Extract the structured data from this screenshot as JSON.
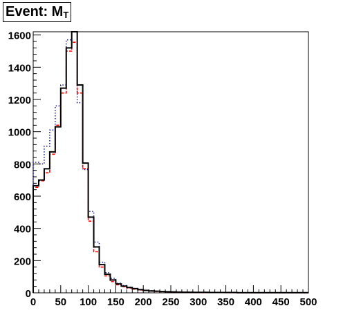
{
  "chart_data": {
    "type": "histogram",
    "title": {
      "main": "Event: M",
      "subscript": "T"
    },
    "xlim": [
      0,
      500
    ],
    "ylim": [
      0,
      1620
    ],
    "bin_width": 10,
    "x_ticks": [
      0,
      50,
      100,
      150,
      200,
      250,
      300,
      350,
      400,
      450,
      500
    ],
    "y_ticks": [
      0,
      200,
      400,
      600,
      800,
      1000,
      1200,
      1400,
      1600
    ],
    "grid": false,
    "series": [
      {
        "color": "#000000",
        "style": "solid",
        "values": [
          665,
          700,
          770,
          875,
          1030,
          1270,
          1520,
          1620,
          1290,
          805,
          470,
          285,
          175,
          115,
          80,
          55,
          42,
          33,
          26,
          20,
          15,
          12,
          10,
          8,
          7,
          6,
          5,
          4,
          4,
          3,
          3,
          3,
          2,
          2,
          2,
          2,
          2,
          1,
          1,
          1,
          1,
          1,
          1,
          1,
          1,
          1,
          1,
          1,
          1,
          1
        ]
      },
      {
        "color": "#1f1fa8",
        "style": "dotted",
        "values": [
          810,
          800,
          910,
          1010,
          1160,
          1290,
          1570,
          1620,
          1180,
          765,
          505,
          315,
          190,
          125,
          90,
          60,
          45,
          35,
          27,
          21,
          16,
          13,
          10,
          8,
          7,
          6,
          5,
          4,
          4,
          3,
          3,
          3,
          2,
          2,
          2,
          2,
          2,
          1,
          1,
          1,
          1,
          1,
          1,
          1,
          1,
          1,
          1,
          1,
          1,
          1
        ]
      },
      {
        "color": "#ff0000",
        "style": "dashed",
        "values": [
          655,
          695,
          745,
          860,
          1040,
          1240,
          1500,
          1555,
          1240,
          770,
          445,
          255,
          160,
          105,
          70,
          50,
          38,
          30,
          23,
          18,
          14,
          11,
          9,
          7,
          6,
          5,
          4,
          4,
          3,
          3,
          2,
          2,
          2,
          2,
          2,
          1,
          1,
          1,
          1,
          1,
          1,
          1,
          1,
          1,
          1,
          1,
          1,
          1,
          1,
          1
        ]
      }
    ]
  }
}
